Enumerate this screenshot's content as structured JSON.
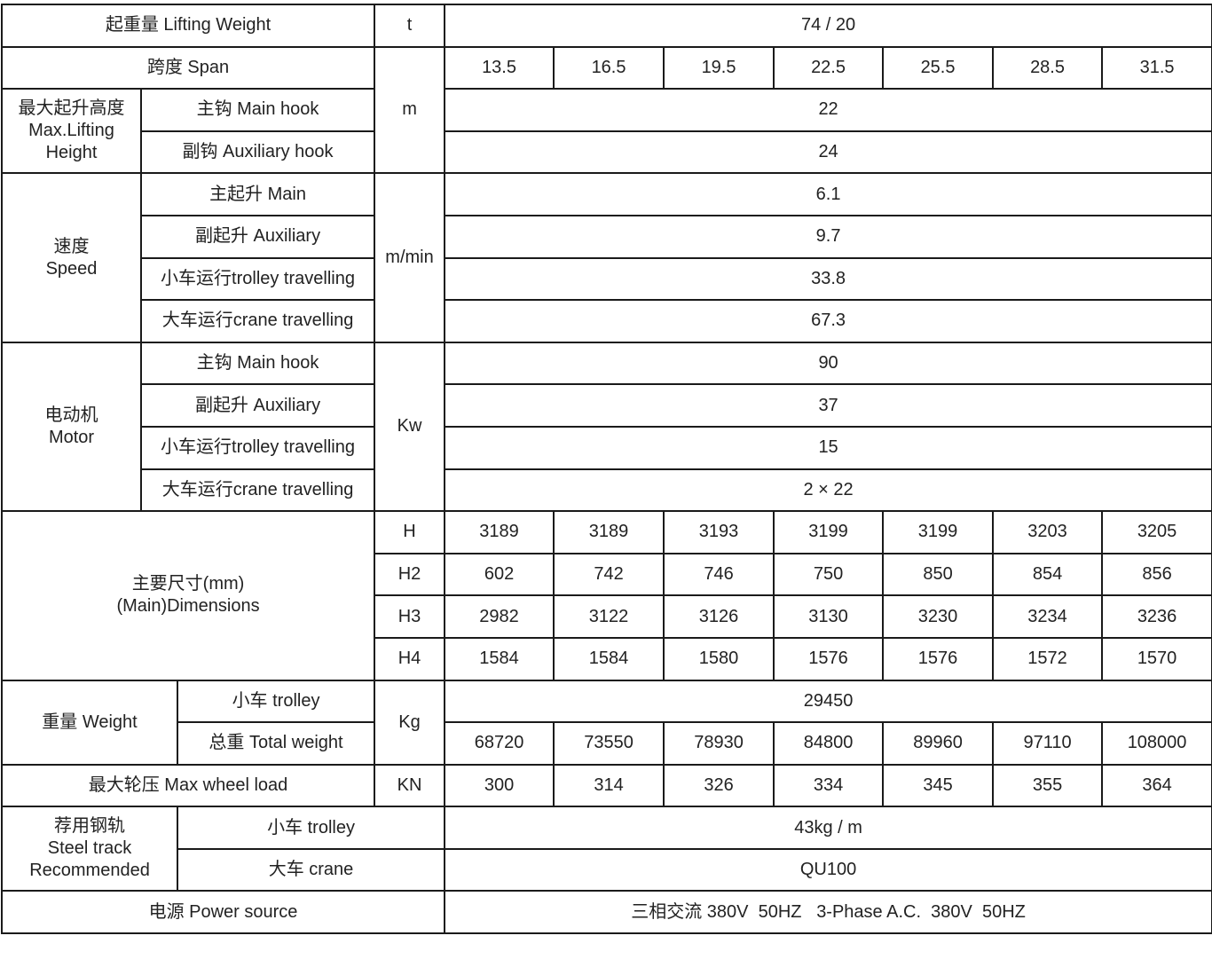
{
  "lifting_weight": {
    "label": "起重量 Lifting Weight",
    "unit": "t",
    "value": "74 / 20"
  },
  "span": {
    "label": "跨度 Span",
    "unit": "m",
    "values": [
      "13.5",
      "16.5",
      "19.5",
      "22.5",
      "25.5",
      "28.5",
      "31.5"
    ]
  },
  "max_lifting_height": {
    "label_cn": "最大起升高度",
    "label_en1": "Max.Lifting",
    "label_en2": "Height",
    "main_label": "主钩 Main hook",
    "main": "22",
    "aux_label": "副钩 Auxiliary hook",
    "aux": "24"
  },
  "speed": {
    "label_cn": "速度",
    "label_en": "Speed",
    "unit": "m/min",
    "rows": [
      {
        "label": "主起升 Main",
        "value": "6.1"
      },
      {
        "label": "副起升 Auxiliary",
        "value": "9.7"
      },
      {
        "label": "小车运行trolley travelling",
        "value": "33.8"
      },
      {
        "label": "大车运行crane travelling",
        "value": "67.3"
      }
    ]
  },
  "motor": {
    "label_cn": "电动机",
    "label_en": "Motor",
    "unit": "Kw",
    "rows": [
      {
        "label": "主钩 Main hook",
        "value": "90"
      },
      {
        "label": "副起升 Auxiliary",
        "value": "37"
      },
      {
        "label": "小车运行trolley travelling",
        "value": "15"
      },
      {
        "label": "大车运行crane travelling",
        "value": "2 × 22"
      }
    ]
  },
  "dimensions": {
    "label_cn": "主要尺寸(mm)",
    "label_en": "(Main)Dimensions",
    "rows": [
      {
        "label": "H",
        "values": [
          "3189",
          "3189",
          "3193",
          "3199",
          "3199",
          "3203",
          "3205"
        ]
      },
      {
        "label": "H2",
        "values": [
          "602",
          "742",
          "746",
          "750",
          "850",
          "854",
          "856"
        ]
      },
      {
        "label": "H3",
        "values": [
          "2982",
          "3122",
          "3126",
          "3130",
          "3230",
          "3234",
          "3236"
        ]
      },
      {
        "label": "H4",
        "values": [
          "1584",
          "1584",
          "1580",
          "1576",
          "1576",
          "1572",
          "1570"
        ]
      }
    ]
  },
  "weight": {
    "label": "重量 Weight",
    "unit": "Kg",
    "trolley_label": "小车 trolley",
    "trolley": "29450",
    "total_label": "总重 Total weight",
    "total": [
      "68720",
      "73550",
      "78930",
      "84800",
      "89960",
      "97110",
      "108000"
    ]
  },
  "max_wheel_load": {
    "label": "最大轮压 Max wheel load",
    "unit": "KN",
    "values": [
      "300",
      "314",
      "326",
      "334",
      "345",
      "355",
      "364"
    ]
  },
  "steel_track": {
    "label_cn": "荐用钢轨",
    "label_en1": "Steel track",
    "label_en2": "Recommended",
    "trolley_label": "小车 trolley",
    "trolley": "43kg / m",
    "crane_label": "大车 crane",
    "crane": "QU100"
  },
  "power_source": {
    "label": "电源 Power source",
    "value": "三相交流 380V  50HZ   3-Phase A.C.  380V  50HZ"
  }
}
